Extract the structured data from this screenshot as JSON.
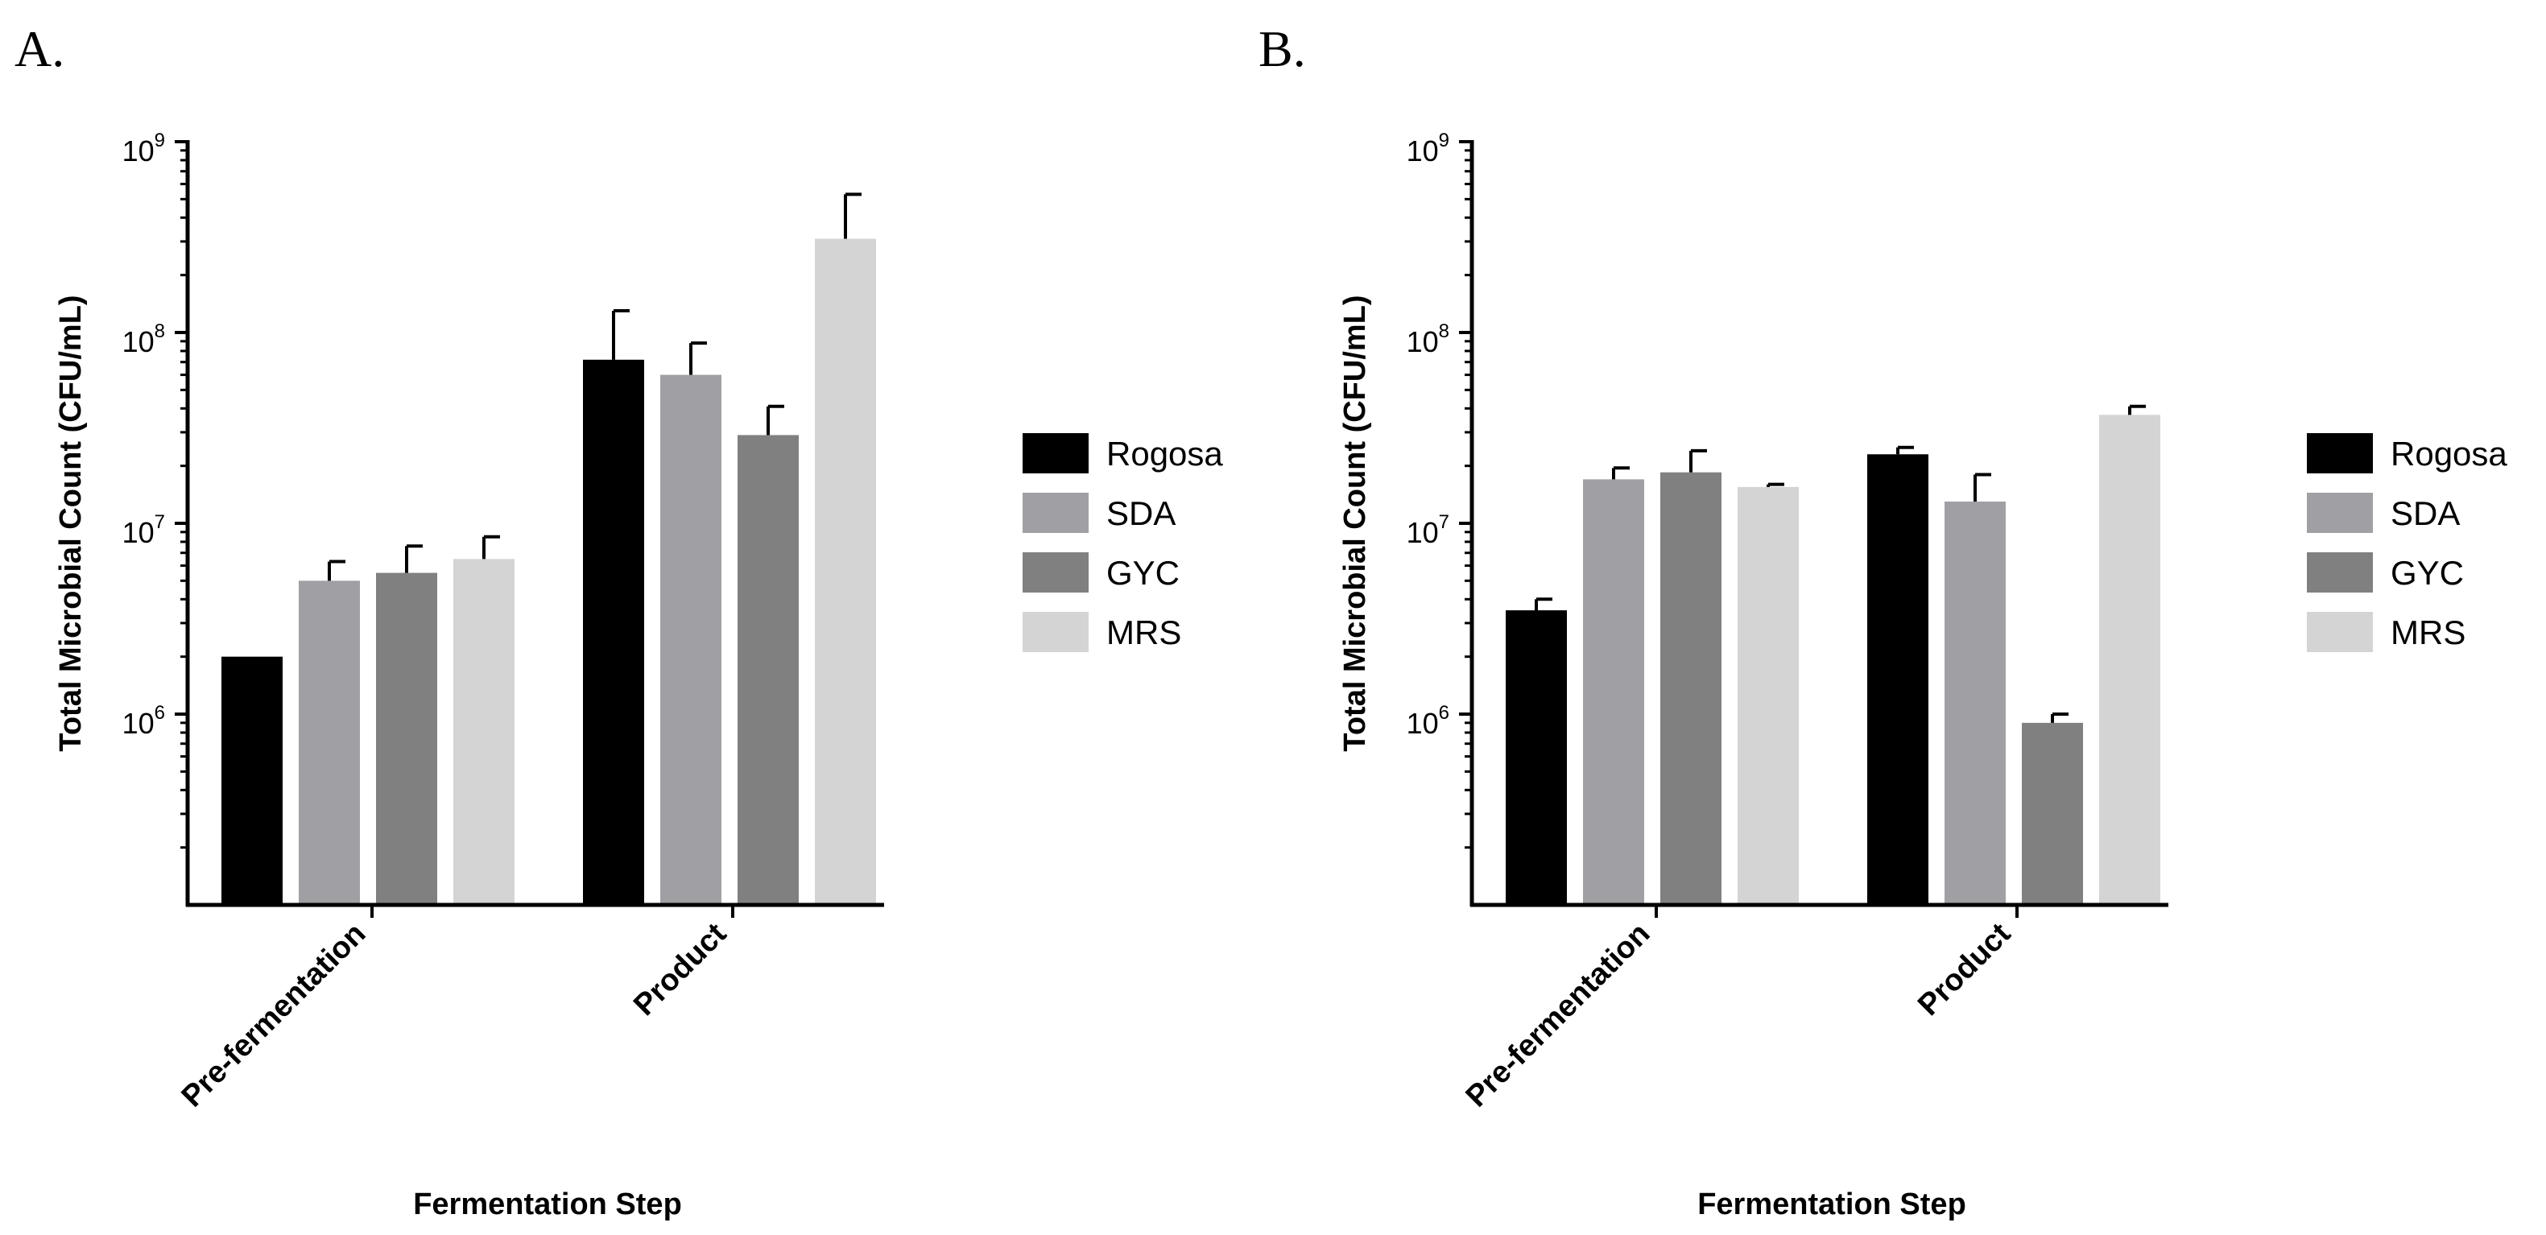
{
  "figure": {
    "panels": [
      "A.",
      "B."
    ]
  },
  "colors": {
    "Rogosa": "#000000",
    "SDA": "#a0a0a4",
    "GYC": "#808080",
    "MRS": "#d4d4d4",
    "axis": "#000000"
  },
  "chart_data": [
    {
      "panel": "A.",
      "type": "bar",
      "yscale": "log",
      "ylim": [
        100000,
        1000000000
      ],
      "yticks": [
        {
          "base": "10",
          "exp": "6",
          "value": 1000000
        },
        {
          "base": "10",
          "exp": "7",
          "value": 10000000
        },
        {
          "base": "10",
          "exp": "8",
          "value": 100000000
        },
        {
          "base": "10",
          "exp": "9",
          "value": 1000000000
        }
      ],
      "xlabel": "Fermentation Step",
      "ylabel": "Total Microbial Count (CFU/mL)",
      "categories": [
        "Pre-fermentation",
        "Product"
      ],
      "series": [
        {
          "name": "Rogosa",
          "values": [
            2000000,
            72000000
          ],
          "errors_upper": [
            2000000,
            130000000
          ]
        },
        {
          "name": "SDA",
          "values": [
            5000000,
            60000000
          ],
          "errors_upper": [
            6300000,
            88000000
          ]
        },
        {
          "name": "GYC",
          "values": [
            5500000,
            29000000
          ],
          "errors_upper": [
            7600000,
            41000000
          ]
        },
        {
          "name": "MRS",
          "values": [
            6500000,
            310000000
          ],
          "errors_upper": [
            8500000,
            530000000
          ]
        }
      ],
      "legend": [
        "Rogosa",
        "SDA",
        "GYC",
        "MRS"
      ],
      "legend_position": "right"
    },
    {
      "panel": "B.",
      "type": "bar",
      "yscale": "log",
      "ylim": [
        100000,
        1000000000
      ],
      "yticks": [
        {
          "base": "10",
          "exp": "6",
          "value": 1000000
        },
        {
          "base": "10",
          "exp": "7",
          "value": 10000000
        },
        {
          "base": "10",
          "exp": "8",
          "value": 100000000
        },
        {
          "base": "10",
          "exp": "9",
          "value": 1000000000
        }
      ],
      "xlabel": "Fermentation Step",
      "ylabel": "Total Microbial Count (CFU/mL)",
      "categories": [
        "Pre-fermentation",
        "Product"
      ],
      "series": [
        {
          "name": "Rogosa",
          "values": [
            3500000,
            23000000
          ],
          "errors_upper": [
            4000000,
            25000000
          ]
        },
        {
          "name": "SDA",
          "values": [
            17000000,
            13000000
          ],
          "errors_upper": [
            19500000,
            18000000
          ]
        },
        {
          "name": "GYC",
          "values": [
            18500000,
            900000
          ],
          "errors_upper": [
            24000000,
            1000000
          ]
        },
        {
          "name": "MRS",
          "values": [
            15500000,
            37000000
          ],
          "errors_upper": [
            16000000,
            41000000
          ]
        }
      ],
      "legend": [
        "Rogosa",
        "SDA",
        "GYC",
        "MRS"
      ],
      "legend_position": "right"
    }
  ]
}
